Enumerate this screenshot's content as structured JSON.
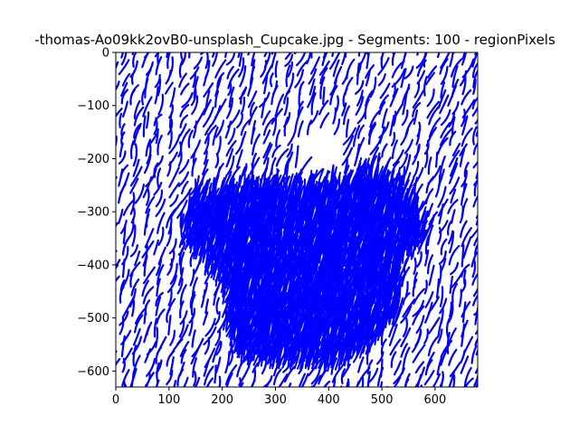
{
  "chart_data": {
    "type": "line",
    "title": "-thomas-Ao09kk2ovB0-unsplash_Cupcake.jpg - Segments: 100 - regionPixels",
    "xlabel": "",
    "ylabel": "",
    "xlim": [
      0,
      680
    ],
    "ylim": [
      -630,
      0
    ],
    "xticks": [
      0,
      100,
      200,
      300,
      400,
      500,
      600
    ],
    "yticks": [
      0,
      -100,
      -200,
      -300,
      -400,
      -500,
      -600
    ],
    "xtick_labels": [
      "0",
      "100",
      "200",
      "300",
      "400",
      "500",
      "600"
    ],
    "ytick_labels": [
      "0",
      "−100",
      "−200",
      "−300",
      "−400",
      "−500",
      "−600"
    ],
    "grid": false,
    "series_color": "#0000ff",
    "background_color": "#ffffff",
    "stroke_field": {
      "description": "",
      "cupcake_outline": [
        [
          120,
          -340
        ],
        [
          140,
          -285
        ],
        [
          200,
          -275
        ],
        [
          300,
          -272
        ],
        [
          380,
          -272
        ],
        [
          420,
          -262
        ],
        [
          460,
          -245
        ],
        [
          500,
          -255
        ],
        [
          540,
          -280
        ],
        [
          580,
          -350
        ],
        [
          570,
          -380
        ],
        [
          535,
          -405
        ],
        [
          530,
          -500
        ],
        [
          470,
          -570
        ],
        [
          420,
          -600
        ],
        [
          320,
          -600
        ],
        [
          230,
          -585
        ],
        [
          200,
          -530
        ],
        [
          200,
          -460
        ],
        [
          175,
          -420
        ],
        [
          120,
          -360
        ]
      ],
      "gaps": [
        {
          "center": [
            382,
            -197
          ],
          "radius": [
            45,
            45
          ]
        },
        {
          "center": [
            75,
            -330
          ],
          "radius": [
            10,
            10
          ]
        },
        {
          "center": [
            150,
            -250
          ],
          "radius": [
            10,
            10
          ]
        }
      ]
    }
  }
}
